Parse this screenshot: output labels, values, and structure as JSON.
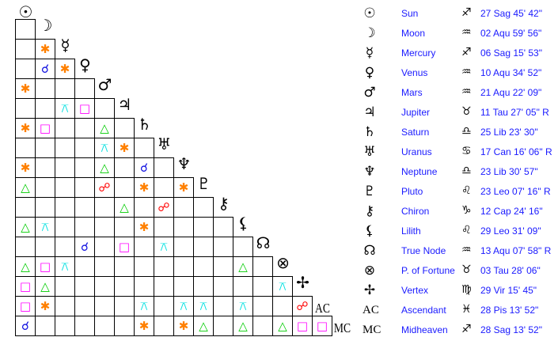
{
  "aspect_colors": {
    "conjunction": "#1010e0",
    "sextile": "#ff8000",
    "square": "#ff00ff",
    "trine": "#00cc00",
    "quincunx": "#00e0e0",
    "opposition": "#ff0000"
  },
  "aspect_icons": {
    "conjunction": "☌",
    "sextile": "✱",
    "square": "□",
    "trine": "△",
    "quincunx": "⚻",
    "opposition": "☍"
  },
  "planets": [
    {
      "glyph": "☉",
      "name": "Sun",
      "sign": "♐",
      "position": "27 Sag 45' 42\""
    },
    {
      "glyph": "☽",
      "name": "Moon",
      "sign": "♒",
      "position": "02 Aqu 59' 56\""
    },
    {
      "glyph": "☿",
      "name": "Mercury",
      "sign": "♐",
      "position": "06 Sag 15' 53\""
    },
    {
      "glyph": "♀",
      "name": "Venus",
      "sign": "♒",
      "position": "10 Aqu 34' 52\""
    },
    {
      "glyph": "♂",
      "name": "Mars",
      "sign": "♒",
      "position": "21 Aqu 22' 09\""
    },
    {
      "glyph": "♃",
      "name": "Jupiter",
      "sign": "♉",
      "position": "11 Tau 27' 05\" R"
    },
    {
      "glyph": "♄",
      "name": "Saturn",
      "sign": "♎",
      "position": "25 Lib 23' 30\""
    },
    {
      "glyph": "♅",
      "name": "Uranus",
      "sign": "♋",
      "position": "17 Can 16' 06\" R"
    },
    {
      "glyph": "♆",
      "name": "Neptune",
      "sign": "♎",
      "position": "23 Lib 30' 57\""
    },
    {
      "glyph": "♇",
      "name": "Pluto",
      "sign": "♌",
      "position": "23 Leo 07' 16\" R"
    },
    {
      "glyph": "⚷",
      "name": "Chiron",
      "sign": "♑",
      "position": "12 Cap 24' 16\""
    },
    {
      "glyph": "⚸",
      "name": "Lilith",
      "sign": "♌",
      "position": "29 Leo 31' 09\""
    },
    {
      "glyph": "☊",
      "name": "True Node",
      "sign": "♒",
      "position": "13 Aqu 07' 58\" R"
    },
    {
      "glyph": "⊗",
      "name": "P. of Fortune",
      "sign": "♉",
      "position": "03 Tau 28' 06\""
    },
    {
      "glyph": "✢",
      "name": "Vertex",
      "sign": "♍",
      "position": "29 Vir 15' 45\""
    },
    {
      "glyph": "AC",
      "name": "Ascendant",
      "sign": "♓",
      "position": "28 Pis 13' 52\""
    },
    {
      "glyph": "MC",
      "name": "Midheaven",
      "sign": "♐",
      "position": "28 Sag 13' 52\""
    }
  ],
  "aspects": [
    [],
    [],
    [
      [
        1,
        "sextile"
      ]
    ],
    [
      [
        1,
        "conjunction"
      ],
      [
        2,
        "sextile"
      ]
    ],
    [
      [
        0,
        "sextile"
      ]
    ],
    [
      [
        2,
        "quincunx"
      ],
      [
        3,
        "square"
      ]
    ],
    [
      [
        0,
        "sextile"
      ],
      [
        1,
        "square"
      ],
      [
        4,
        "trine"
      ]
    ],
    [
      [
        4,
        "quincunx"
      ],
      [
        5,
        "sextile"
      ]
    ],
    [
      [
        0,
        "sextile"
      ],
      [
        4,
        "trine"
      ],
      [
        6,
        "conjunction"
      ]
    ],
    [
      [
        0,
        "trine"
      ],
      [
        4,
        "opposition"
      ],
      [
        6,
        "sextile"
      ],
      [
        8,
        "sextile"
      ]
    ],
    [
      [
        5,
        "trine"
      ],
      [
        7,
        "opposition"
      ]
    ],
    [
      [
        0,
        "trine"
      ],
      [
        1,
        "quincunx"
      ],
      [
        6,
        "sextile"
      ]
    ],
    [
      [
        3,
        "conjunction"
      ],
      [
        5,
        "square"
      ],
      [
        7,
        "quincunx"
      ]
    ],
    [
      [
        0,
        "trine"
      ],
      [
        1,
        "square"
      ],
      [
        2,
        "quincunx"
      ],
      [
        11,
        "trine"
      ]
    ],
    [
      [
        0,
        "square"
      ],
      [
        1,
        "trine"
      ],
      [
        13,
        "quincunx"
      ]
    ],
    [
      [
        0,
        "square"
      ],
      [
        1,
        "sextile"
      ],
      [
        6,
        "quincunx"
      ],
      [
        8,
        "quincunx"
      ],
      [
        9,
        "quincunx"
      ],
      [
        11,
        "quincunx"
      ],
      [
        14,
        "opposition"
      ]
    ],
    [
      [
        0,
        "conjunction"
      ],
      [
        6,
        "sextile"
      ],
      [
        8,
        "sextile"
      ],
      [
        9,
        "trine"
      ],
      [
        11,
        "trine"
      ],
      [
        13,
        "trine"
      ],
      [
        14,
        "square"
      ],
      [
        15,
        "square"
      ]
    ]
  ]
}
